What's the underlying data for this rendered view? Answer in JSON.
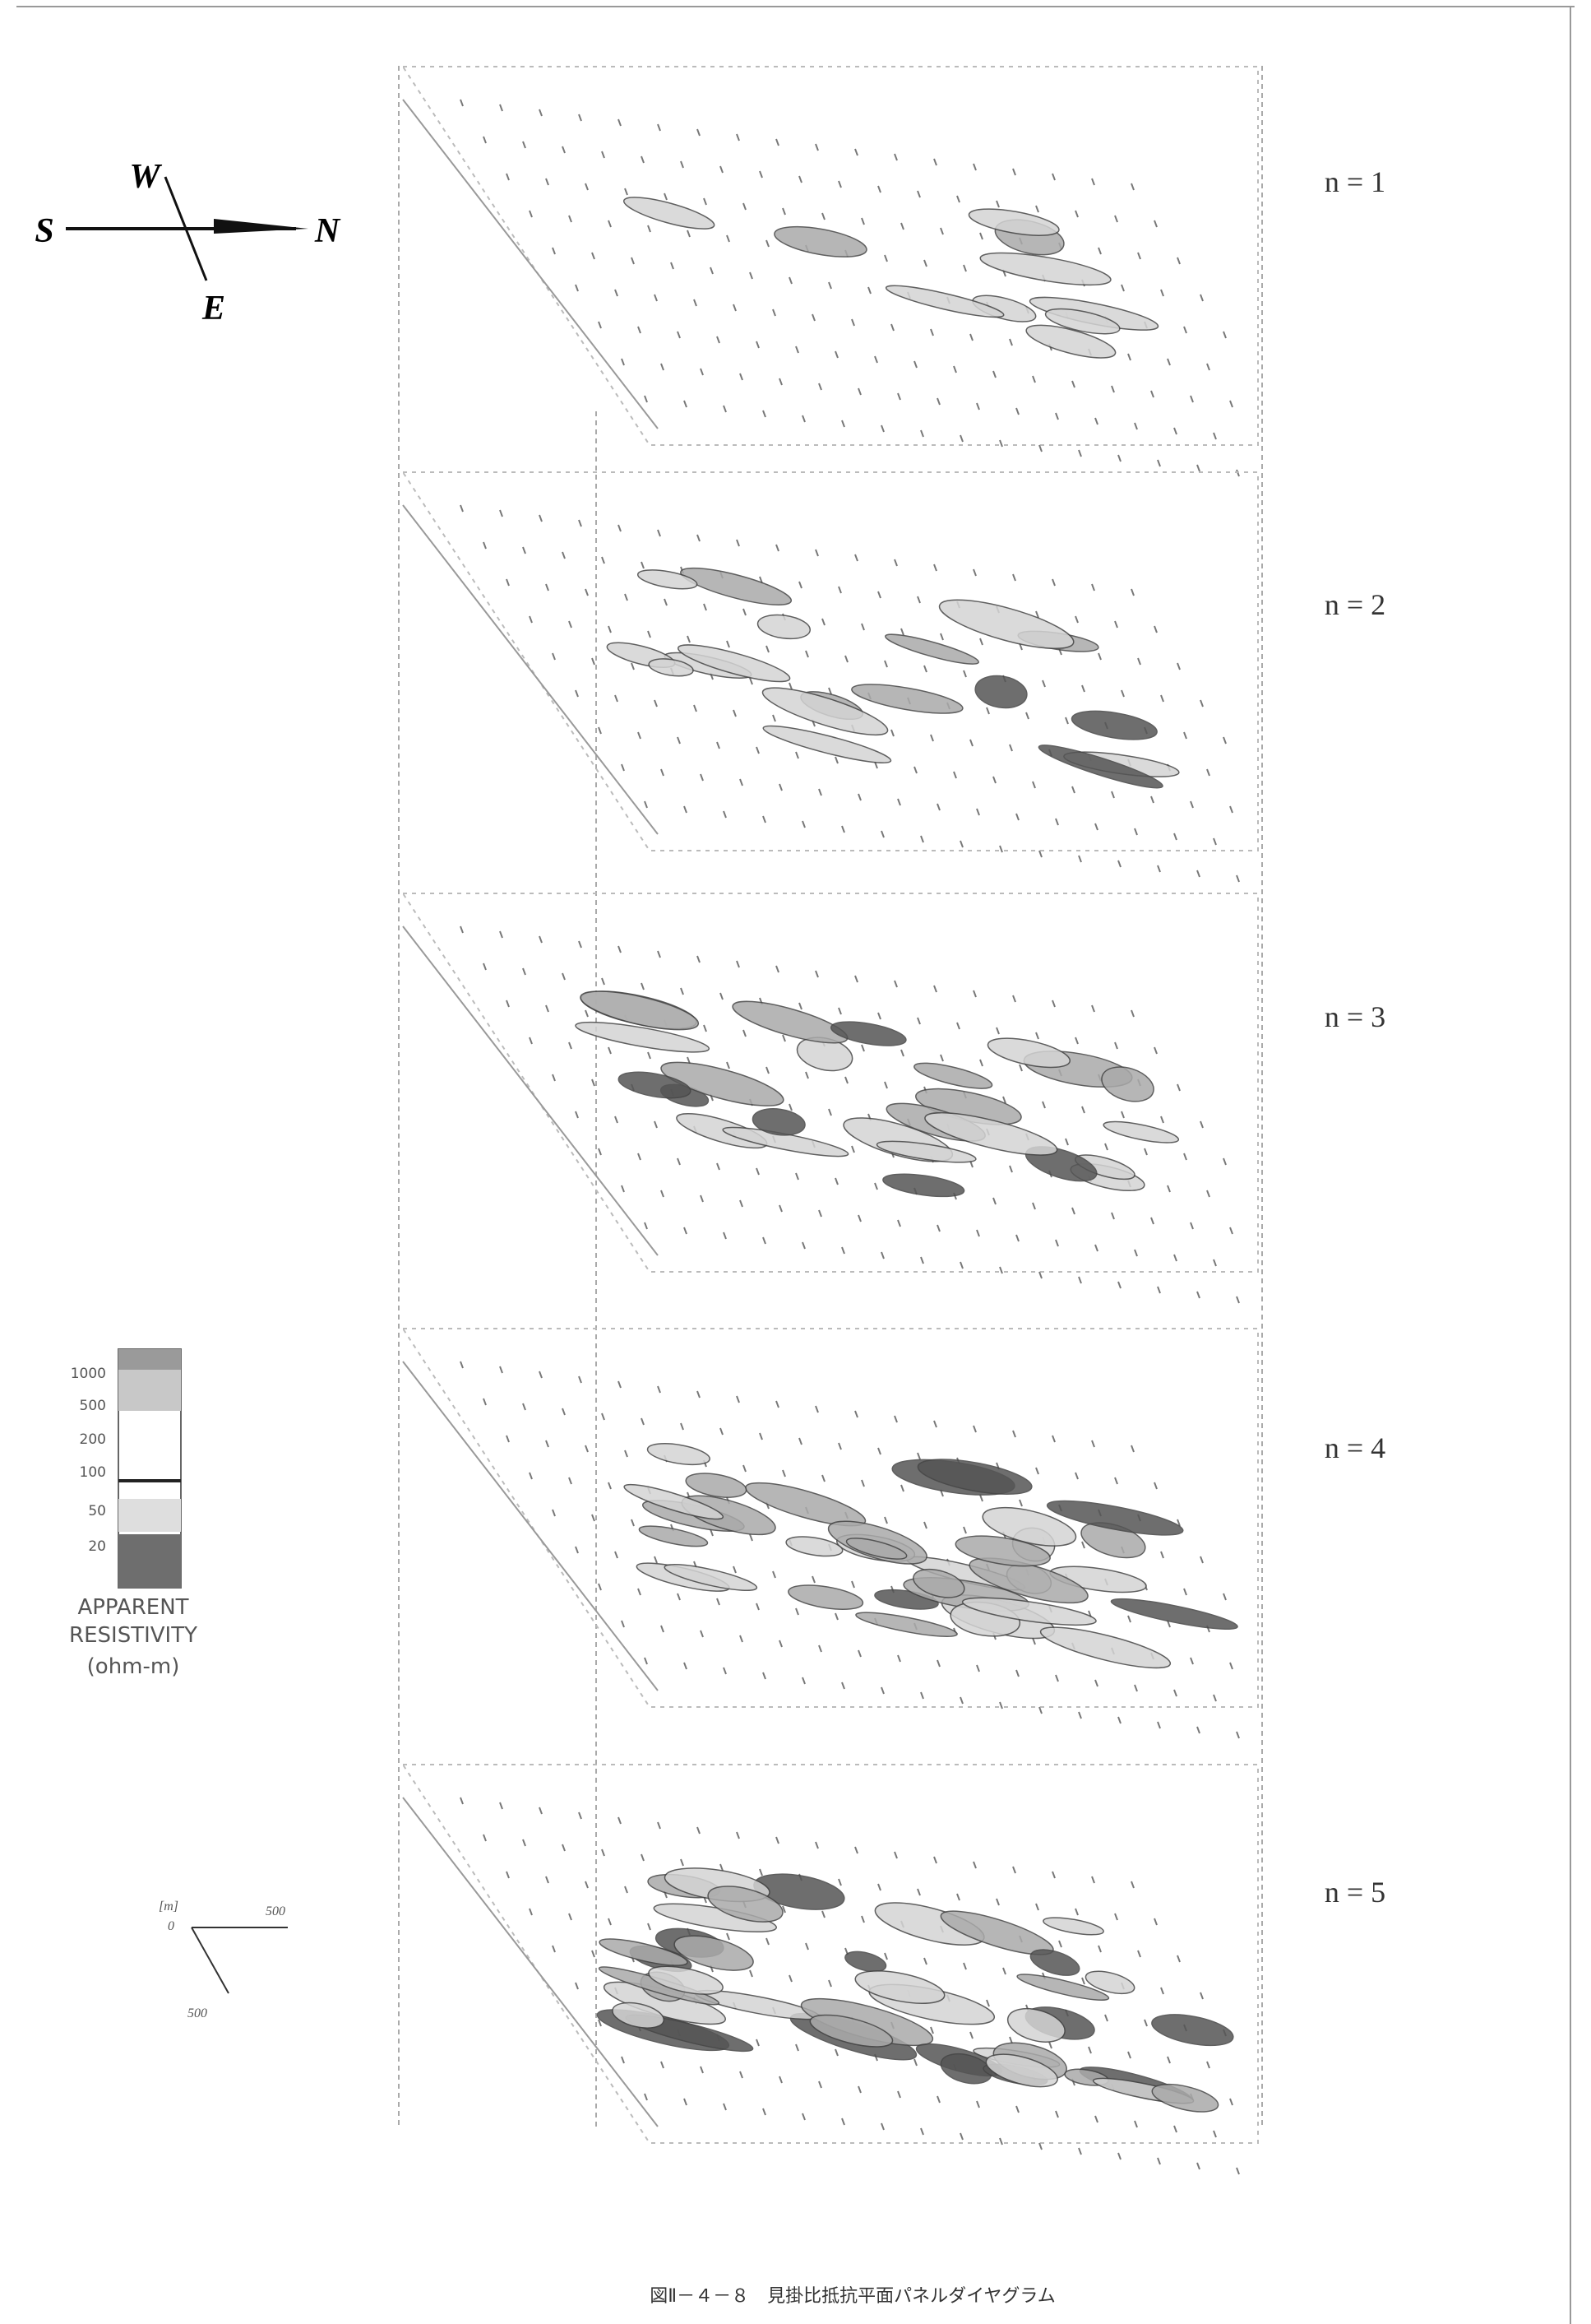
{
  "compass": {
    "south": "S",
    "west": "W",
    "north": "N",
    "east": "E"
  },
  "panels": [
    {
      "label": "n = 1"
    },
    {
      "label": "n = 2"
    },
    {
      "label": "n = 3"
    },
    {
      "label": "n = 4"
    },
    {
      "label": "n = 5"
    }
  ],
  "legend": {
    "values": [
      1000,
      500,
      200,
      100,
      50,
      20
    ],
    "title": [
      "APPARENT",
      "RESISTIVITY",
      "(ohm-m)"
    ]
  },
  "scale": {
    "unit": "[m]",
    "origin": "0",
    "x_length": "500",
    "y_length": "500"
  },
  "caption": "図Ⅱ－４－８　見掛比抵抗平面パネルダイヤグラム"
}
